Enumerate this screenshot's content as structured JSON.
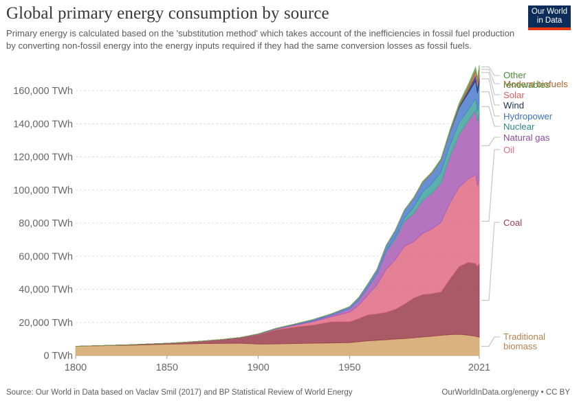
{
  "title": "Global primary energy consumption by source",
  "subtitle": "Primary energy is calculated based on the 'substitution method' which takes account of the inefficiencies in fossil fuel production by converting non-fossil energy into the energy inputs required if they had the same conversion losses as fossil fuels.",
  "logo": {
    "line1": "Our World",
    "line2": "in Data"
  },
  "footer": {
    "source": "Source: Our World in Data based on Vaclav Smil (2017) and BP Statistical Review of World Energy",
    "credit": "OurWorldInData.org/energy • CC BY"
  },
  "chart_data": {
    "type": "area",
    "stacked": true,
    "x_label": "",
    "y_label": "",
    "y_unit": "TWh",
    "ylim": [
      0,
      170000
    ],
    "xlim": [
      1800,
      2021
    ],
    "x_ticks": [
      "1800",
      "1850",
      "1900",
      "1950",
      "2021"
    ],
    "y_ticks": [
      "0 TWh",
      "20,000 TWh",
      "40,000 TWh",
      "60,000 TWh",
      "80,000 TWh",
      "100,000 TWh",
      "120,000 TWh",
      "140,000 TWh",
      "160,000 TWh"
    ],
    "grid": "horizontal dashed",
    "legend": "right, end of series",
    "x": [
      1800,
      1810,
      1820,
      1830,
      1840,
      1850,
      1860,
      1870,
      1880,
      1890,
      1900,
      1910,
      1920,
      1930,
      1940,
      1950,
      1955,
      1960,
      1965,
      1970,
      1975,
      1980,
      1985,
      1990,
      1995,
      2000,
      2005,
      2010,
      2015,
      2019,
      2020,
      2021
    ],
    "series": [
      {
        "name": "Traditional biomass",
        "label_lines": [
          "Traditional",
          "biomass"
        ],
        "color": "#d4a56a",
        "label_color": "#b8824f",
        "values": [
          5600,
          5800,
          6000,
          6200,
          6500,
          6800,
          7000,
          7200,
          7300,
          7400,
          6900,
          7000,
          7200,
          7400,
          7600,
          7800,
          8300,
          8800,
          9200,
          9500,
          9900,
          10200,
          10700,
          11200,
          11600,
          12200,
          12600,
          12800,
          12300,
          11600,
          11300,
          11100
        ]
      },
      {
        "name": "Coal",
        "label_lines": [
          "Coal"
        ],
        "color": "#9b3c4b",
        "label_color": "#9b3c4b",
        "values": [
          0,
          100,
          200,
          300,
          500,
          600,
          1000,
          1600,
          2400,
          3500,
          5700,
          8500,
          10000,
          11000,
          12800,
          12600,
          14000,
          15800,
          16000,
          16600,
          18000,
          20800,
          24000,
          25600,
          25800,
          26200,
          33800,
          41000,
          44000,
          44000,
          42600,
          44500
        ]
      },
      {
        "name": "Oil",
        "label_lines": [
          "Oil"
        ],
        "color": "#e06b85",
        "label_color": "#e06b85",
        "values": [
          0,
          0,
          0,
          0,
          0,
          0,
          0,
          0,
          0,
          0,
          200,
          500,
          1000,
          2000,
          3000,
          5800,
          8000,
          12000,
          17500,
          26000,
          30000,
          35000,
          34000,
          37000,
          39000,
          42000,
          46000,
          48000,
          50500,
          53500,
          48500,
          51000
        ]
      },
      {
        "name": "Natural gas",
        "label_lines": [
          "Natural gas"
        ],
        "color": "#a85cb5",
        "label_color": "#8b4a9c",
        "values": [
          0,
          0,
          0,
          0,
          0,
          0,
          0,
          0,
          0,
          0,
          100,
          200,
          300,
          600,
          900,
          2100,
          3000,
          4500,
          6500,
          10500,
          12500,
          15000,
          17000,
          20000,
          21500,
          24000,
          28000,
          32000,
          35000,
          39000,
          38500,
          40300
        ]
      },
      {
        "name": "Nuclear",
        "label_lines": [
          "Nuclear"
        ],
        "color": "#3fa49c",
        "label_color": "#2b8a83",
        "values": [
          0,
          0,
          0,
          0,
          0,
          0,
          0,
          0,
          0,
          0,
          0,
          0,
          0,
          0,
          0,
          0,
          0,
          40,
          200,
          500,
          1200,
          2000,
          3800,
          5000,
          5800,
          6500,
          7000,
          7000,
          6800,
          7200,
          6800,
          7000
        ]
      },
      {
        "name": "Hydropower",
        "label_lines": [
          "Hydropower"
        ],
        "color": "#4c7ccd",
        "label_color": "#3d6fc4",
        "values": [
          0,
          0,
          0,
          0,
          0,
          0,
          0,
          0,
          0,
          0,
          150,
          300,
          500,
          700,
          900,
          1200,
          1700,
          2100,
          2600,
          3300,
          4000,
          4800,
          5400,
          5800,
          6400,
          7000,
          7800,
          9000,
          10000,
          10600,
          10800,
          10800
        ]
      },
      {
        "name": "Wind",
        "label_lines": [
          "Wind"
        ],
        "color": "#1f3b73",
        "label_color": "#1a2f5a",
        "values": [
          0,
          0,
          0,
          0,
          0,
          0,
          0,
          0,
          0,
          0,
          0,
          0,
          0,
          0,
          0,
          0,
          0,
          0,
          0,
          0,
          0,
          0,
          10,
          10,
          20,
          80,
          270,
          880,
          2200,
          3600,
          4000,
          4900
        ]
      },
      {
        "name": "Solar",
        "label_lines": [
          "Solar"
        ],
        "color": "#e8767a",
        "label_color": "#e05a5e",
        "values": [
          0,
          0,
          0,
          0,
          0,
          0,
          0,
          0,
          0,
          0,
          0,
          0,
          0,
          0,
          0,
          0,
          0,
          0,
          0,
          0,
          0,
          0,
          0,
          0,
          0,
          0,
          10,
          90,
          670,
          1800,
          2200,
          2700
        ]
      },
      {
        "name": "Modern biofuels",
        "label_lines": [
          "Modern biofuels"
        ],
        "color": "#b4652a",
        "label_color": "#b4652a",
        "values": [
          0,
          0,
          0,
          0,
          0,
          0,
          0,
          0,
          0,
          0,
          0,
          0,
          0,
          0,
          0,
          0,
          0,
          0,
          0,
          0,
          0,
          50,
          150,
          200,
          250,
          250,
          400,
          800,
          1100,
          1200,
          1100,
          1200
        ]
      },
      {
        "name": "Other renewables",
        "label_lines": [
          "Other",
          "renewables"
        ],
        "color": "#6fa85a",
        "label_color": "#4b8a3a",
        "values": [
          0,
          0,
          0,
          0,
          0,
          0,
          0,
          0,
          0,
          0,
          0,
          0,
          0,
          0,
          0,
          0,
          0,
          0,
          0,
          50,
          100,
          200,
          300,
          400,
          500,
          600,
          800,
          1000,
          1400,
          1700,
          1750,
          1850
        ]
      }
    ]
  }
}
